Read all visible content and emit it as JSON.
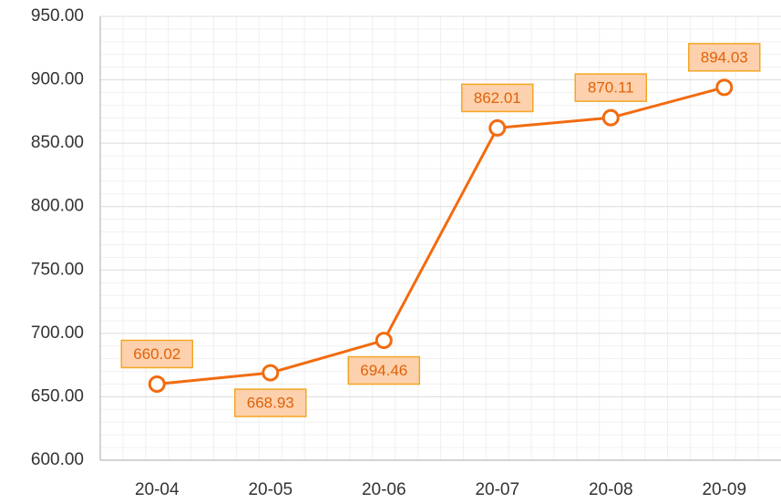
{
  "chart_data": {
    "type": "line",
    "categories": [
      "20-04",
      "20-05",
      "20-06",
      "20-07",
      "20-08",
      "20-09"
    ],
    "series": [
      {
        "color": "#f26b0f",
        "values": [
          660.02,
          668.93,
          694.46,
          862.01,
          870.11,
          894.03
        ]
      }
    ],
    "ylim": [
      600,
      950
    ],
    "yticks": [
      {
        "value": 600,
        "label": "600.00"
      },
      {
        "value": 650,
        "label": "650.00"
      },
      {
        "value": 700,
        "label": "700.00"
      },
      {
        "value": 750,
        "label": "750.00"
      },
      {
        "value": 800,
        "label": "800.00"
      },
      {
        "value": 850,
        "label": "850.00"
      },
      {
        "value": 900,
        "label": "900.00"
      },
      {
        "value": 950,
        "label": "950.00"
      }
    ],
    "grid": true
  }
}
